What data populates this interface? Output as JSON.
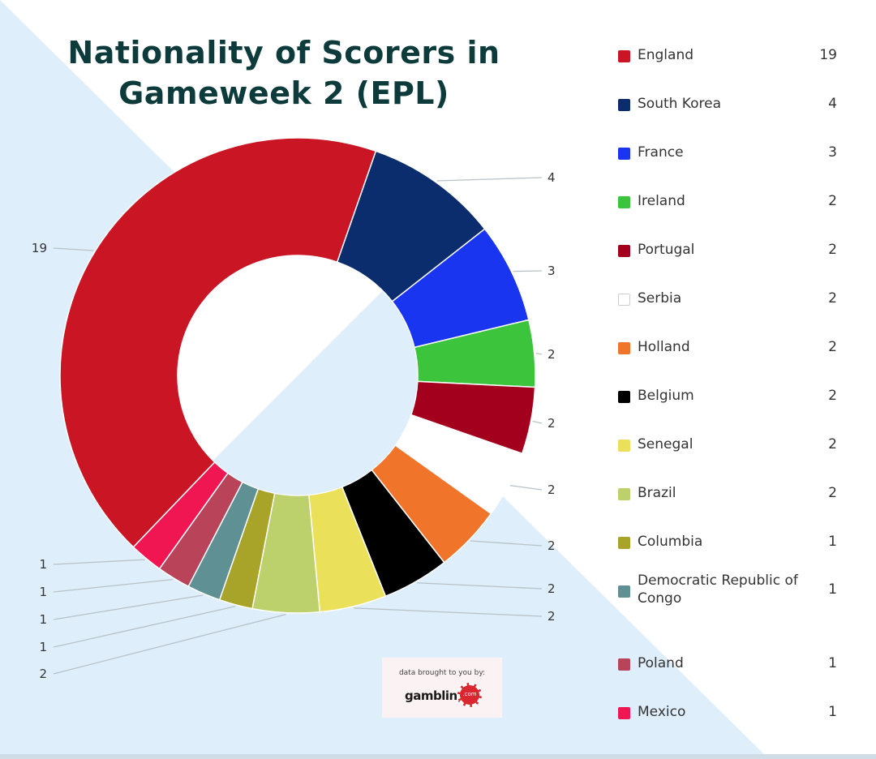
{
  "chart_data": {
    "type": "pie",
    "style": "donut",
    "title": "Nationality of Scorers in Gameweek 2 (EPL)",
    "categories": [
      "England",
      "South Korea",
      "France",
      "Ireland",
      "Portugal",
      "Serbia",
      "Holland",
      "Belgium",
      "Senegal",
      "Brazil",
      "Columbia",
      "Democratic Republic of Congo",
      "Poland",
      "Mexico"
    ],
    "values": [
      19,
      4,
      3,
      2,
      2,
      2,
      2,
      2,
      2,
      2,
      1,
      1,
      1,
      1
    ],
    "colors": [
      "#c91524",
      "#0b2d6e",
      "#1a35f0",
      "#3cc43c",
      "#a3001e",
      "#ffffff",
      "#f0742a",
      "#000000",
      "#ebe05a",
      "#bcd06c",
      "#a8a42a",
      "#5f9194",
      "#b94459",
      "#f01651"
    ],
    "legend_position": "right"
  },
  "credit": {
    "line1": "data brought to you by:",
    "brand": "gambling",
    "chip": ".com"
  },
  "colors": {
    "title": "#0d3b3b",
    "background_band": "#deeefa"
  }
}
